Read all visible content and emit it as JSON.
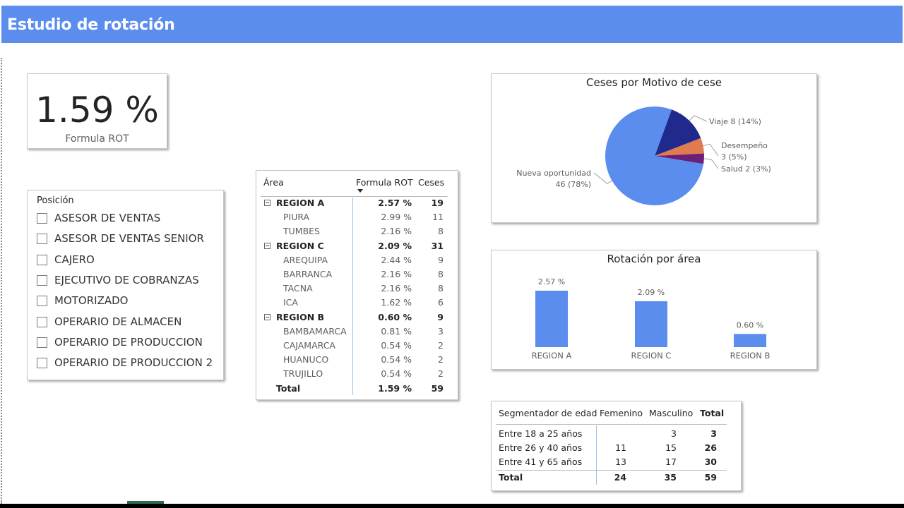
{
  "header": {
    "title": "Estudio de rotación"
  },
  "kpi": {
    "value": "1.59 %",
    "label": "Formula ROT"
  },
  "slicer": {
    "title": "Posición",
    "items": [
      "ASESOR DE VENTAS",
      "ASESOR DE VENTAS SENIOR",
      "CAJERO",
      "EJECUTIVO DE COBRANZAS",
      "MOTORIZADO",
      "OPERARIO DE ALMACEN",
      "OPERARIO DE PRODUCCION",
      "OPERARIO DE PRODUCCION 2"
    ]
  },
  "matrix": {
    "headers": [
      "Área",
      "Formula ROT",
      "Ceses"
    ],
    "rows": [
      {
        "type": "group",
        "label": "REGION A",
        "rot": "2.57 %",
        "ceses": "19"
      },
      {
        "type": "child",
        "label": "PIURA",
        "rot": "2.99 %",
        "ceses": "11"
      },
      {
        "type": "child",
        "label": "TUMBES",
        "rot": "2.16 %",
        "ceses": "8"
      },
      {
        "type": "group",
        "label": "REGION C",
        "rot": "2.09 %",
        "ceses": "31"
      },
      {
        "type": "child",
        "label": "AREQUIPA",
        "rot": "2.44 %",
        "ceses": "9"
      },
      {
        "type": "child",
        "label": "BARRANCA",
        "rot": "2.16 %",
        "ceses": "8"
      },
      {
        "type": "child",
        "label": "TACNA",
        "rot": "2.16 %",
        "ceses": "8"
      },
      {
        "type": "child",
        "label": "ICA",
        "rot": "1.62 %",
        "ceses": "6"
      },
      {
        "type": "group",
        "label": "REGION B",
        "rot": "0.60 %",
        "ceses": "9"
      },
      {
        "type": "child",
        "label": "BAMBAMARCA",
        "rot": "0.81 %",
        "ceses": "3"
      },
      {
        "type": "child",
        "label": "CAJAMARCA",
        "rot": "0.54 %",
        "ceses": "2"
      },
      {
        "type": "child",
        "label": "HUANUCO",
        "rot": "0.54 %",
        "ceses": "2"
      },
      {
        "type": "child",
        "label": "TRUJILLO",
        "rot": "0.54 %",
        "ceses": "2"
      },
      {
        "type": "total",
        "label": "Total",
        "rot": "1.59 %",
        "ceses": "59"
      }
    ]
  },
  "pie_chart": {
    "title": "Ceses por Motivo de cese",
    "labels": {
      "viaje": "Viaje 8 (14%)",
      "desempeno_line1": "Desempeño",
      "desempeno_line2": "3 (5%)",
      "salud": "Salud 2 (3%)",
      "nueva_line1": "Nueva oportunidad",
      "nueva_line2": "46 (78%)"
    }
  },
  "bar_chart": {
    "title": "Rotación por área"
  },
  "age_table": {
    "headers": [
      "Segmentador de edad",
      "Femenino",
      "Masculino",
      "Total"
    ],
    "rows": [
      {
        "label": "Entre 18 a 25 años",
        "fem": "",
        "masc": "3",
        "total": "3"
      },
      {
        "label": "Entre 26 y 40 años",
        "fem": "11",
        "masc": "15",
        "total": "26"
      },
      {
        "label": "Entre 41 y 65 años",
        "fem": "13",
        "masc": "17",
        "total": "30"
      },
      {
        "label": "Total",
        "fem": "24",
        "masc": "35",
        "total": "59"
      }
    ]
  },
  "colors": {
    "header": "#5b8def",
    "nueva_oportunidad": "#5b8def",
    "viaje": "#1f2a8c",
    "desempeno": "#e07b4f",
    "salud": "#6b1f7a",
    "bar": "#5b8def"
  },
  "chart_data": [
    {
      "type": "pie",
      "title": "Ceses por Motivo de cese",
      "categories": [
        "Nueva oportunidad",
        "Viaje",
        "Desempeño",
        "Salud"
      ],
      "values": [
        46,
        8,
        3,
        2
      ],
      "percent_labels": [
        "78%",
        "14%",
        "5%",
        "3%"
      ]
    },
    {
      "type": "bar",
      "title": "Rotación por área",
      "categories": [
        "REGION A",
        "REGION C",
        "REGION B"
      ],
      "values": [
        2.57,
        2.09,
        0.6
      ],
      "data_labels": [
        "2.57 %",
        "2.09 %",
        "0.60 %"
      ],
      "xlabel": "",
      "ylabel": ""
    }
  ]
}
